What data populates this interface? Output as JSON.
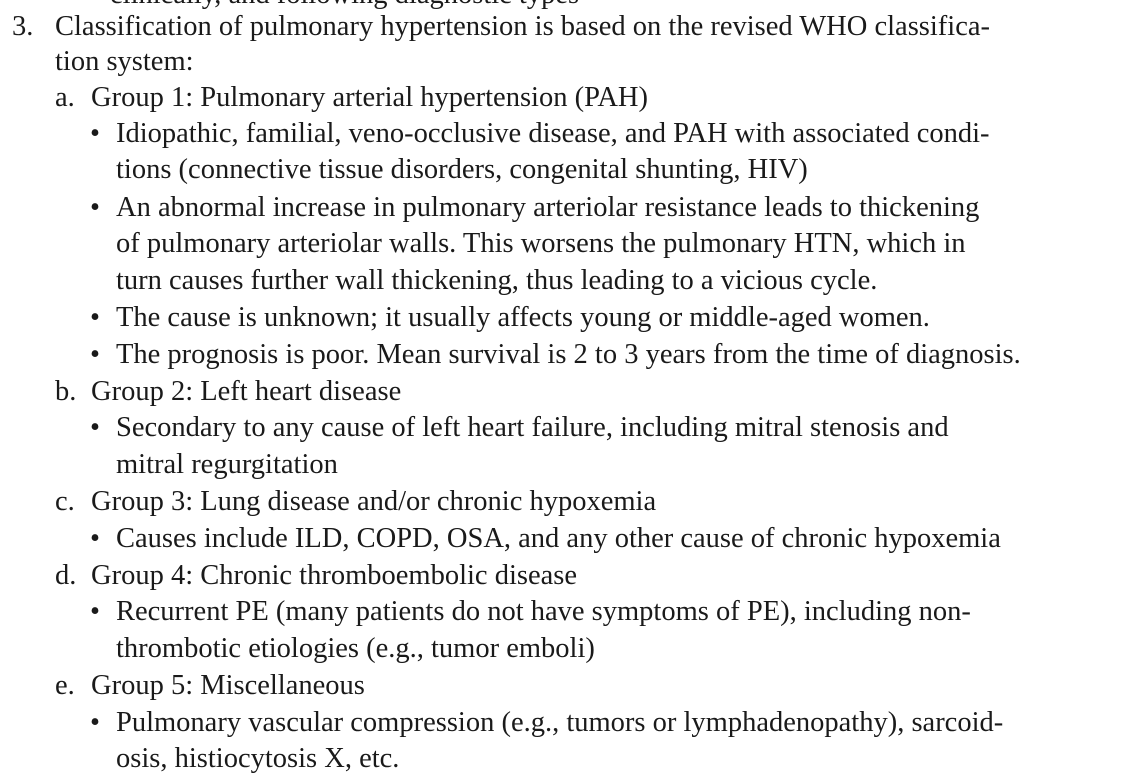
{
  "page": {
    "cut_top_line": "clinically, and following diagnostic types",
    "item": {
      "number": "3.",
      "title_line1": "Classification of pulmonary hypertension is based on the revised WHO classifica-",
      "title_line2": "tion system:"
    },
    "groups": [
      {
        "letter": "a.",
        "heading": "Group 1: Pulmonary arterial hypertension (PAH)",
        "bullets": [
          [
            "Idiopathic, familial, veno-occlusive disease, and PAH with associated condi-",
            "tions (connective tissue disorders, congenital shunting, HIV)"
          ],
          [
            "An abnormal increase in pulmonary arteriolar resistance leads to thickening",
            "of pulmonary arteriolar walls. This worsens the pulmonary HTN, which in",
            "turn causes further wall thickening, thus leading to a vicious cycle."
          ],
          [
            "The cause is unknown; it usually affects young or middle-aged women."
          ],
          [
            "The prognosis is poor. Mean survival is 2 to 3 years from the time of diagnosis."
          ]
        ]
      },
      {
        "letter": "b.",
        "heading": "Group 2: Left heart disease",
        "bullets": [
          [
            "Secondary to any cause of left heart failure, including mitral stenosis and",
            "mitral regurgitation"
          ]
        ]
      },
      {
        "letter": "c.",
        "heading": "Group 3: Lung disease and/or chronic hypoxemia",
        "bullets": [
          [
            "Causes include ILD, COPD, OSA, and any other cause of chronic hypoxemia"
          ]
        ]
      },
      {
        "letter": "d.",
        "heading": "Group 4: Chronic thromboembolic disease",
        "bullets": [
          [
            "Recurrent PE (many patients do not have symptoms of PE), including non-",
            "thrombotic etiologies (e.g., tumor emboli)"
          ]
        ]
      },
      {
        "letter": "e.",
        "heading": "Group 5: Miscellaneous",
        "bullets": [
          [
            "Pulmonary vascular compression (e.g., tumors or lymphadenopathy), sarcoid-",
            "osis, histiocytosis X, etc."
          ]
        ]
      }
    ],
    "bullet_glyph": "•"
  }
}
